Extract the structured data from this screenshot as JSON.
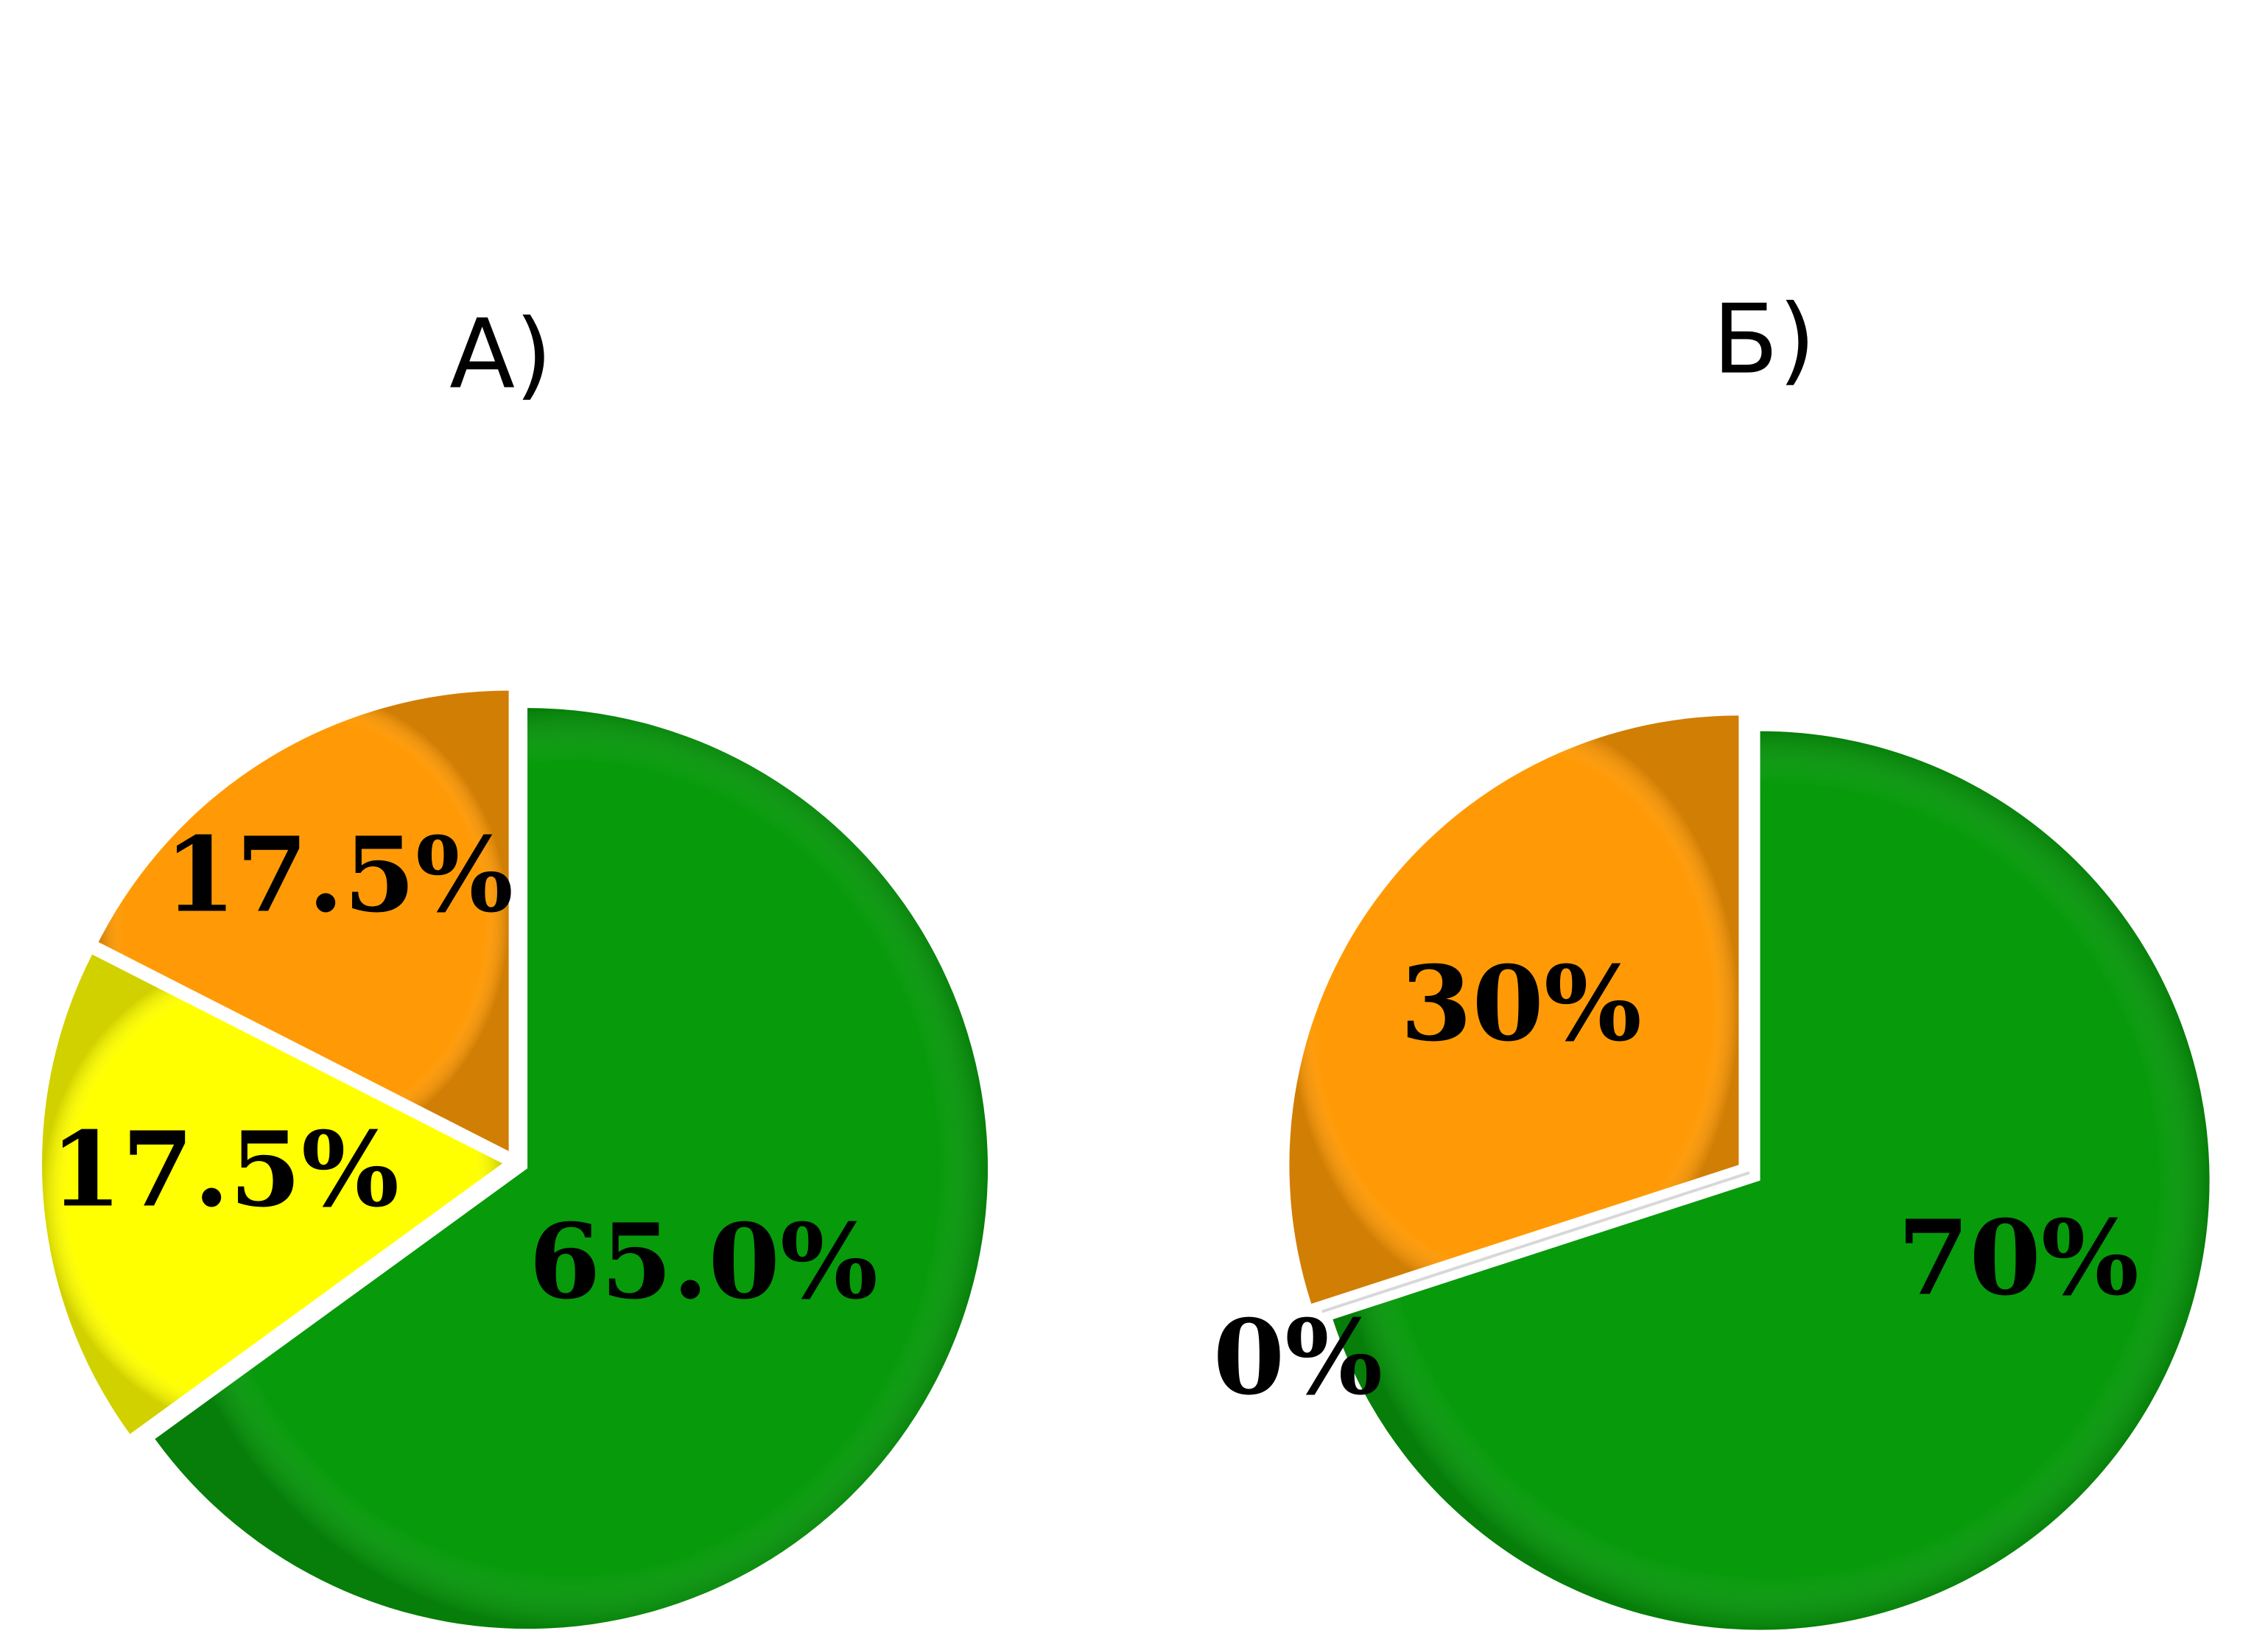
{
  "chart_data": [
    {
      "type": "pie",
      "title": "А)",
      "slices": [
        {
          "label": "65.0%",
          "value": 65.0,
          "color": "#079A0B"
        },
        {
          "label": "17.5%",
          "value": 17.5,
          "color": "#FFFF00"
        },
        {
          "label": "17.5%",
          "value": 17.5,
          "color": "#FF9A06"
        }
      ],
      "legend": "none"
    },
    {
      "type": "pie",
      "title": "Б)",
      "slices": [
        {
          "label": "70%",
          "value": 70,
          "color": "#079A0B"
        },
        {
          "label": "0%",
          "value": 0,
          "color": "#FFFF00"
        },
        {
          "label": "30%",
          "value": 30,
          "color": "#FF9A06"
        }
      ],
      "legend": "none"
    }
  ]
}
